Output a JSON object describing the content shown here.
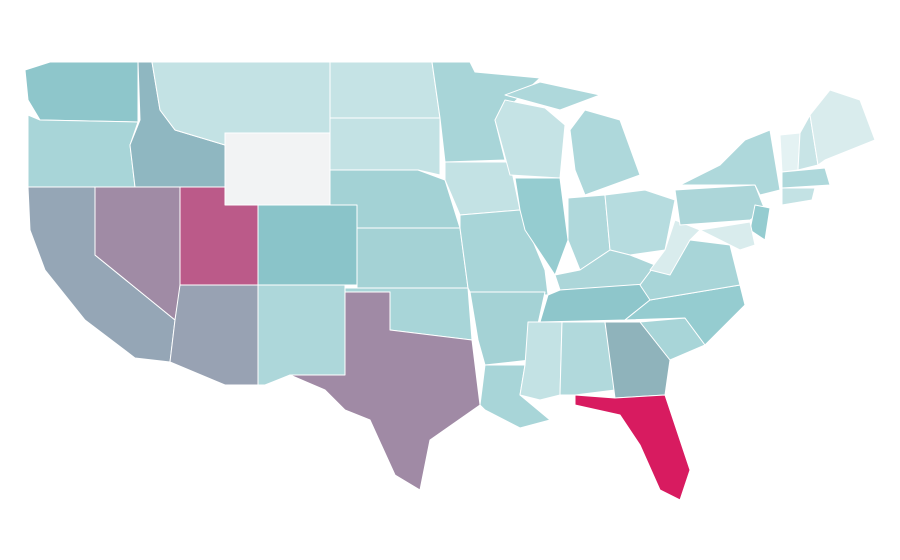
{
  "map": {
    "colors": [
      "#8ec6cb",
      "#a8d5d8",
      "#8fb7c1",
      "#c3e2e4",
      "#f2f3f4",
      "#95a6b6",
      "#a08ba5",
      "#bb5a89",
      "#98a2b3",
      "#8ac4c9",
      "#add7da",
      "#c5e3e5",
      "#c3e2e4",
      "#a3d2d5",
      "#a4d2d5",
      "#a8d5d8",
      "#a08aa5",
      "#a8d5d8",
      "#c3e2e4",
      "#a8d5d8",
      "#a4d2d5",
      "#a8d5d8",
      "#c5e3e5",
      "#95ccd0",
      "#aed8db",
      "#aed8db",
      "#afd8db",
      "#b6dcdf",
      "#acd6d9",
      "#8ec6cb",
      "#c3e2e4",
      "#b1d9dc",
      "#8fb3bb",
      "#d81b60",
      "#a8d5d8",
      "#95ccd0",
      "#a8d5d8",
      "#d9eced",
      "#acd6d9",
      "#aed8db",
      "#95ccd0",
      "#d9eced",
      "#e4f2f3",
      "#c8e4e6",
      "#d9eced",
      "#aed8db",
      "#c3e2e4"
    ]
  }
}
